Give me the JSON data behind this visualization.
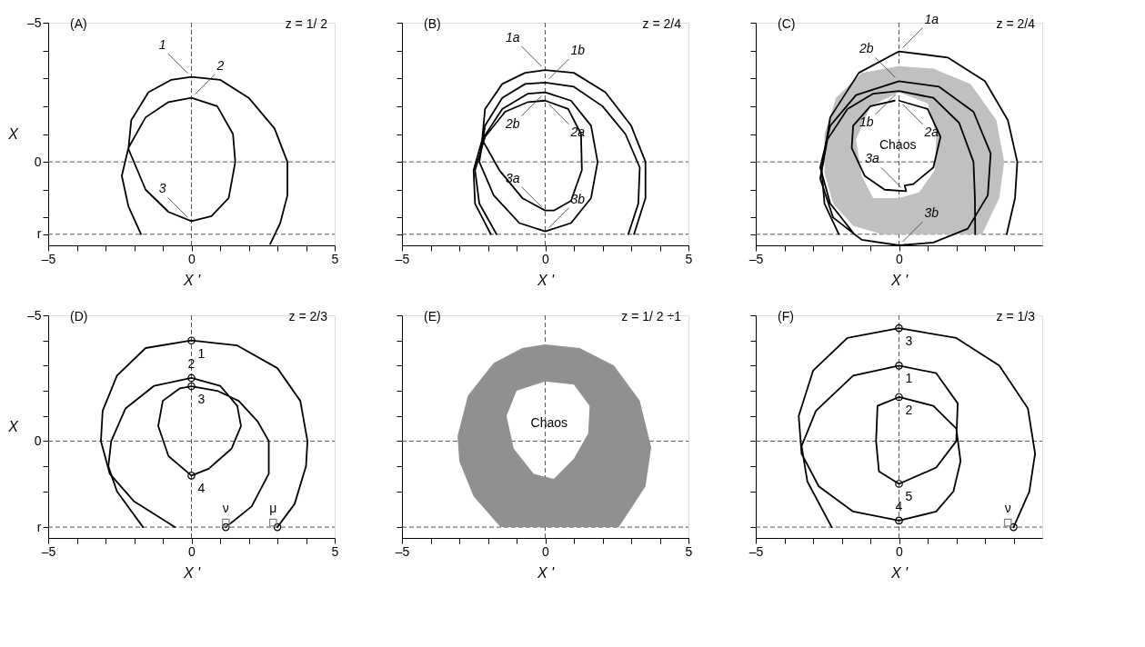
{
  "chart_data": [
    {
      "type": "line",
      "title": "(A)",
      "subtitle": "z = 1/ 2",
      "xlabel": "X '",
      "ylabel": "X",
      "xlim": [
        -5,
        5
      ],
      "ylim": [
        3,
        -5
      ],
      "xticks": [
        {
          "value": -5,
          "label": "–5"
        },
        {
          "value": -4,
          "label": null
        },
        {
          "value": -3,
          "label": null
        },
        {
          "value": -2,
          "label": null
        },
        {
          "value": -1,
          "label": null
        },
        0,
        {
          "value": 1,
          "label": null
        },
        {
          "value": 2,
          "label": null
        },
        {
          "value": 3,
          "label": null
        },
        {
          "value": 4,
          "label": null
        },
        5
      ],
      "yticks": [
        {
          "value": -5,
          "label": "–5"
        },
        {
          "value": -4,
          "label": null
        },
        {
          "value": -3,
          "label": null
        },
        {
          "value": -2,
          "label": null
        },
        {
          "value": -1,
          "label": null
        },
        0,
        {
          "value": 1,
          "label": null
        },
        {
          "value": 2,
          "label": null
        },
        {
          "value": 2.6,
          "label": "r"
        }
      ],
      "ref_lines": [
        {
          "axis": "x",
          "value": 0,
          "color": "#555555",
          "line_style": "dashed"
        },
        {
          "axis": "y",
          "value": 0,
          "color": "#555555",
          "line_style": "dashed"
        },
        {
          "axis": "y",
          "value": 2.6,
          "color": "#555555",
          "line_style": "dashed"
        }
      ],
      "grid": false,
      "line_style": "solid",
      "series": [
        {
          "color": "#000000",
          "x": [
            -1.76,
            -2.2,
            -2.43,
            -2.2,
            -1.6,
            -0.8,
            0,
            0.9,
            1.45,
            1.53,
            1.3,
            0.7,
            0,
            -0.8,
            -1.6,
            -2.2,
            -2.1,
            -1.5,
            -0.7,
            0,
            1.0,
            2.0,
            2.9,
            3.35,
            3.35,
            3.1,
            2.75
          ],
          "values": [
            2.6,
            1.6,
            0.5,
            -0.5,
            -1.6,
            -2.15,
            -2.3,
            -2.0,
            -1.0,
            0,
            1.3,
            1.95,
            2.13,
            1.8,
            1.0,
            -0.47,
            -1.5,
            -2.5,
            -2.95,
            -3.05,
            -2.95,
            -2.3,
            -1.2,
            0,
            1.2,
            2.2,
            2.95
          ]
        }
      ],
      "annotations": [
        {
          "text": "1",
          "x": 0,
          "y": -3.05
        },
        {
          "text": "2",
          "x": 0,
          "y": -2.3
        },
        {
          "text": "3",
          "x": 0,
          "y": 2.13
        }
      ]
    },
    {
      "type": "line",
      "title": "(B)",
      "subtitle": "z = 2/4",
      "xlabel": "X '",
      "xlim": [
        -5,
        5
      ],
      "ylim": [
        3,
        -5
      ],
      "tick_labels": "x",
      "xticks": [
        {
          "value": -5,
          "label": "–5"
        },
        {
          "value": -4,
          "label": null
        },
        {
          "value": -3,
          "label": null
        },
        {
          "value": -2,
          "label": null
        },
        {
          "value": -1,
          "label": null
        },
        0,
        {
          "value": 1,
          "label": null
        },
        {
          "value": 2,
          "label": null
        },
        {
          "value": 3,
          "label": null
        },
        {
          "value": 4,
          "label": null
        },
        5
      ],
      "yticks": [
        {
          "value": -5,
          "label": null
        },
        {
          "value": -4,
          "label": null
        },
        {
          "value": -3,
          "label": null
        },
        {
          "value": -2,
          "label": null
        },
        {
          "value": -1,
          "label": null
        },
        {
          "value": 0,
          "label": null
        },
        {
          "value": 1,
          "label": null
        },
        {
          "value": 2,
          "label": null
        },
        {
          "value": 2.6,
          "label": null
        }
      ],
      "ref_lines": [
        {
          "axis": "x",
          "value": 0,
          "color": "#555555",
          "line_style": "dashed"
        },
        {
          "axis": "y",
          "value": 0,
          "color": "#555555",
          "line_style": "dashed"
        },
        {
          "axis": "y",
          "value": 2.6,
          "color": "#555555",
          "line_style": "dashed"
        }
      ],
      "grid": false,
      "line_style": "solid",
      "series": [
        {
          "color": "#000000",
          "x": [
            -1.7,
            -2.3,
            -2.45,
            -2.1,
            -1.4,
            -0.6,
            0,
            0.8,
            1.25,
            1.28,
            0.9,
            0.3,
            0,
            -0.8,
            -1.6,
            -2.2,
            -2.1,
            -1.5,
            -0.7,
            0,
            1.0,
            2.1,
            3.0,
            3.5,
            3.5,
            3.1
          ],
          "values": [
            2.6,
            1.5,
            0.3,
            -0.9,
            -1.8,
            -2.15,
            -2.2,
            -1.9,
            -1.0,
            0.3,
            1.4,
            1.75,
            1.75,
            1.3,
            0.3,
            -0.8,
            -1.9,
            -2.8,
            -3.2,
            -3.3,
            -3.2,
            -2.5,
            -1.3,
            0,
            1.3,
            2.6
          ]
        },
        {
          "color": "#000000",
          "x": [
            -1.9,
            -2.45,
            -2.5,
            -2.2,
            -1.5,
            -0.6,
            0,
            0.9,
            1.6,
            1.83,
            1.6,
            0.9,
            0,
            -0.9,
            -1.8,
            -2.3,
            -2.1,
            -1.5,
            -0.7,
            0,
            1.0,
            2.0,
            2.8,
            3.3,
            3.25,
            2.9
          ],
          "values": [
            2.6,
            1.5,
            0.3,
            -0.8,
            -1.9,
            -2.45,
            -2.5,
            -2.2,
            -1.3,
            0,
            1.3,
            2.2,
            2.5,
            2.2,
            1.2,
            0,
            -1.3,
            -2.3,
            -2.8,
            -2.85,
            -2.7,
            -2.0,
            -1.0,
            0.2,
            1.5,
            2.6
          ]
        }
      ],
      "annotations": [
        {
          "text": "1a",
          "x": 0,
          "y": -3.3
        },
        {
          "text": "1b",
          "x": 0,
          "y": -2.85
        },
        {
          "text": "2b",
          "x": 0,
          "y": -2.5
        },
        {
          "text": "2a",
          "x": 0,
          "y": -2.2
        },
        {
          "text": "3a",
          "x": 0,
          "y": 1.75
        },
        {
          "text": "3b",
          "x": 0,
          "y": 2.5
        }
      ]
    },
    {
      "type": "line",
      "title": "(C)",
      "subtitle": "z = 2/4",
      "xlabel": "X '",
      "xlim": [
        -5,
        5
      ],
      "ylim": [
        3,
        -5
      ],
      "tick_labels": "x",
      "xticks": [
        {
          "value": -5,
          "label": "–5"
        },
        {
          "value": -4,
          "label": null
        },
        {
          "value": -3,
          "label": null
        },
        {
          "value": -2,
          "label": null
        },
        {
          "value": -1,
          "label": null
        },
        0,
        {
          "value": 1,
          "label": null
        },
        {
          "value": 2,
          "label": null
        },
        {
          "value": 3,
          "label": null
        },
        {
          "value": 4,
          "label": null
        }
      ],
      "yticks": [
        {
          "value": -5,
          "label": null
        },
        {
          "value": -4,
          "label": null
        },
        {
          "value": -3,
          "label": null
        },
        {
          "value": -2,
          "label": null
        },
        {
          "value": -1,
          "label": null
        },
        {
          "value": 0,
          "label": null
        },
        {
          "value": 1,
          "label": null
        },
        {
          "value": 2,
          "label": null
        },
        {
          "value": 2.6,
          "label": null
        }
      ],
      "ref_lines": [
        {
          "axis": "x",
          "value": 0,
          "color": "#555555",
          "line_style": "dashed"
        },
        {
          "axis": "y",
          "value": 0,
          "color": "#555555",
          "line_style": "dashed"
        },
        {
          "axis": "y",
          "value": 2.6,
          "color": "#555555",
          "line_style": "dashed"
        }
      ],
      "grid": false,
      "line_style": "solid",
      "series": [
        {
          "type": "area",
          "name": "Chaos",
          "color": "#c0c0c0",
          "x": [
            2.9,
            3.5,
            3.67,
            3.4,
            2.5,
            1.2,
            0,
            -1.3,
            -2.2,
            -2.6,
            -2.6,
            -2.3,
            -1.6,
            -0.6,
            2.9,
            null,
            0,
            1.0,
            1.3,
            1.25,
            0.7,
            0,
            -0.9,
            -1.3,
            -1.5,
            -1.0,
            0
          ],
          "values": [
            2.6,
            1.3,
            0,
            -1.5,
            -2.8,
            -3.35,
            -3.44,
            -3.2,
            -2.3,
            -1.0,
            0.4,
            1.5,
            2.3,
            2.6,
            2.6,
            null,
            -2.5,
            -2.1,
            -1.0,
            0.3,
            1.1,
            1.3,
            1.3,
            0.5,
            -0.8,
            -2.0,
            -2.5
          ]
        },
        {
          "color": "#000000",
          "x": [
            -2.1,
            -2.6,
            -2.7,
            -2.4,
            -1.4,
            0,
            1.7,
            3.0,
            3.8,
            4.13,
            4.05,
            3.76
          ],
          "values": [
            2.6,
            1.5,
            0.3,
            -1.6,
            -3.2,
            -3.97,
            -3.75,
            -2.9,
            -1.5,
            0,
            1.3,
            2.6
          ]
        },
        {
          "color": "#000000",
          "x": [
            -1.56,
            -2.4,
            -2.75,
            -2.4,
            -1.5,
            0,
            1.4,
            2.6,
            3.2,
            3.1,
            2.4,
            1.2,
            0,
            -1.3,
            -2.3,
            -2.75,
            -2.5,
            -1.8,
            -0.9,
            0,
            1.2,
            2.1,
            2.6,
            2.65,
            2.66
          ],
          "values": [
            2.6,
            1.5,
            0.2,
            -1.3,
            -2.4,
            -2.9,
            -2.7,
            -1.8,
            -0.3,
            1.2,
            2.4,
            2.9,
            3.0,
            2.8,
            2.0,
            0.6,
            -0.8,
            -1.9,
            -2.45,
            -2.55,
            -2.3,
            -1.4,
            0,
            1.3,
            2.6
          ]
        },
        {
          "color": "#000000",
          "x": [
            0,
            1.0,
            1.45,
            1.2,
            0.5,
            0.2,
            0.25,
            -0.5,
            -1.2,
            -1.65,
            -1.6,
            -1.0,
            -0.15
          ],
          "values": [
            -2.2,
            -1.9,
            -0.9,
            0.2,
            0.8,
            0.85,
            1.05,
            1.0,
            0.5,
            -0.5,
            -1.3,
            -2.0,
            -2.2
          ]
        }
      ],
      "annotations": [
        {
          "text": "2b",
          "x": 0,
          "y": -2.9
        },
        {
          "text": "1a",
          "x": 0,
          "y": -3.97
        },
        {
          "text": "1b",
          "x": 0,
          "y": -2.55
        },
        {
          "text": "2a",
          "x": 0,
          "y": -2.2
        },
        {
          "text": "3a",
          "x": 0.2,
          "y": 1.05
        },
        {
          "text": "3b",
          "x": 0,
          "y": 3.0
        }
      ]
    },
    {
      "type": "line",
      "title": "(D)",
      "subtitle": "z = 2/3",
      "xlabel": "X '",
      "ylabel": "X",
      "xlim": [
        -5,
        5
      ],
      "ylim": [
        3.85,
        -5
      ],
      "xticks": [
        {
          "value": -5,
          "label": "–5"
        },
        {
          "value": -4,
          "label": null
        },
        {
          "value": -3,
          "label": null
        },
        {
          "value": -2,
          "label": null
        },
        {
          "value": -1,
          "label": null
        },
        0,
        {
          "value": 1,
          "label": null
        },
        {
          "value": 2,
          "label": null
        },
        {
          "value": 3,
          "label": null
        },
        {
          "value": 4,
          "label": null
        },
        5
      ],
      "yticks": [
        {
          "value": -5,
          "label": "–5"
        },
        {
          "value": -4,
          "label": null
        },
        {
          "value": -3,
          "label": null
        },
        {
          "value": -2,
          "label": null
        },
        {
          "value": -1,
          "label": null
        },
        0,
        {
          "value": 1,
          "label": null
        },
        {
          "value": 2,
          "label": null
        },
        {
          "value": 3.42,
          "label": "r"
        }
      ],
      "ref_lines": [
        {
          "axis": "x",
          "value": 0,
          "color": "#555555",
          "line_style": "dashed"
        },
        {
          "axis": "y",
          "value": 0,
          "color": "#555555",
          "line_style": "dashed"
        },
        {
          "axis": "y",
          "value": 3.42,
          "color": "#555555",
          "line_style": "dashed"
        }
      ],
      "grid": false,
      "line_style": "solid",
      "series": [
        {
          "color": "#000000",
          "x": [
            3.0,
            3.6,
            4.0,
            4.05,
            3.8,
            3.0,
            1.6,
            0,
            -1.6,
            -2.6,
            -3.1,
            -3.16,
            -2.85,
            -2.0,
            -0.58
          ],
          "values": [
            3.42,
            2.5,
            1.0,
            0,
            -1.6,
            -2.9,
            -3.8,
            -4.0,
            -3.7,
            -2.6,
            -1.2,
            0,
            1.3,
            2.4,
            3.42
          ]
        },
        {
          "color": "#000000",
          "x": [
            -1.69,
            -2.6,
            -2.9,
            -2.8,
            -2.3,
            -1.3,
            0,
            1.0,
            1.6,
            1.73,
            1.4,
            0.6,
            0,
            -0.8,
            -1.16,
            -1.0,
            -0.4,
            0,
            0.9,
            1.65,
            2.3,
            2.7,
            2.7,
            2.1,
            1.2
          ],
          "values": [
            3.42,
            2.0,
            1.0,
            0,
            -1.3,
            -2.2,
            -2.51,
            -2.2,
            -1.4,
            -0.6,
            0.3,
            1.1,
            1.37,
            0.6,
            -0.6,
            -1.6,
            -2.1,
            -2.18,
            -2.0,
            -1.6,
            -0.8,
            0,
            1.3,
            2.6,
            3.42
          ]
        },
        {
          "type": "scatter",
          "marker": "circle",
          "color": "#000000",
          "x": [
            0,
            0,
            0,
            0,
            1.2,
            3.0
          ],
          "values": [
            -4.0,
            -2.51,
            -2.18,
            1.37,
            3.42,
            3.42
          ]
        },
        {
          "type": "scatter",
          "marker": "square",
          "color": "#808080",
          "x": [
            1.2,
            2.85
          ],
          "values": [
            3.24,
            3.24
          ]
        }
      ],
      "annotations": [
        {
          "text": "1",
          "x": 0,
          "y": -4.0
        },
        {
          "text": "2",
          "x": 0,
          "y": -2.51
        },
        {
          "text": "3",
          "x": 0,
          "y": -2.18
        },
        {
          "text": "4",
          "x": 0,
          "y": 1.37
        },
        {
          "text": "ν",
          "x": 1.2,
          "y": 3.24
        },
        {
          "text": "μ",
          "x": 2.85,
          "y": 3.24
        }
      ]
    },
    {
      "type": "line",
      "title": "(E)",
      "subtitle": "z = 1/ 2 ÷1",
      "xlabel": "X '",
      "xlim": [
        -5,
        5
      ],
      "ylim": [
        3.85,
        -5
      ],
      "tick_labels": "x",
      "xticks": [
        {
          "value": -5,
          "label": "–5"
        },
        {
          "value": -4,
          "label": null
        },
        {
          "value": -3,
          "label": null
        },
        {
          "value": -2,
          "label": null
        },
        {
          "value": -1,
          "label": null
        },
        0,
        {
          "value": 1,
          "label": null
        },
        {
          "value": 2,
          "label": null
        },
        {
          "value": 3,
          "label": null
        },
        {
          "value": 4,
          "label": null
        },
        5
      ],
      "yticks": [
        {
          "value": -5,
          "label": null
        },
        {
          "value": -4,
          "label": null
        },
        {
          "value": -3,
          "label": null
        },
        {
          "value": -2,
          "label": null
        },
        {
          "value": -1,
          "label": null
        },
        {
          "value": 0,
          "label": null
        },
        {
          "value": 1,
          "label": null
        },
        {
          "value": 2,
          "label": null
        },
        {
          "value": 3.42,
          "label": null
        }
      ],
      "ref_lines": [
        {
          "axis": "x",
          "value": 0,
          "color": "#555555",
          "line_style": "dashed"
        },
        {
          "axis": "y",
          "value": 0,
          "color": "#555555",
          "line_style": "dashed"
        },
        {
          "axis": "y",
          "value": 3.42,
          "color": "#555555",
          "line_style": "dashed"
        }
      ],
      "grid": false,
      "series": [
        {
          "type": "area",
          "name": "Chaos",
          "color": "#909090",
          "x": [
            -1.56,
            -2.5,
            -3.0,
            -3.06,
            -2.7,
            -1.8,
            -0.8,
            0,
            1.2,
            2.4,
            3.3,
            3.7,
            3.5,
            2.57,
            -1.56,
            null,
            0,
            -1.0,
            -1.35,
            -1.1,
            -0.4,
            0.3,
            1.0,
            1.5,
            1.55,
            1.0,
            0
          ],
          "values": [
            3.42,
            2.2,
            0.8,
            -0.2,
            -1.8,
            -3.1,
            -3.7,
            -3.84,
            -3.7,
            -3.0,
            -1.6,
            0.25,
            1.8,
            3.42,
            3.42,
            null,
            -2.37,
            -2.0,
            -1.0,
            0.3,
            1.3,
            1.5,
            0.7,
            -0.3,
            -1.4,
            -2.25,
            -2.37
          ]
        }
      ]
    },
    {
      "type": "line",
      "title": "(F)",
      "subtitle": "z = 1/3",
      "xlabel": "X '",
      "xlim": [
        -5,
        5
      ],
      "ylim": [
        3.85,
        -5
      ],
      "tick_labels": "x",
      "xticks": [
        {
          "value": -5,
          "label": "–5"
        },
        {
          "value": -4,
          "label": null
        },
        {
          "value": -3,
          "label": null
        },
        {
          "value": -2,
          "label": null
        },
        {
          "value": -1,
          "label": null
        },
        0,
        {
          "value": 1,
          "label": null
        },
        {
          "value": 2,
          "label": null
        },
        {
          "value": 3,
          "label": null
        },
        {
          "value": 4,
          "label": null
        }
      ],
      "yticks": [
        {
          "value": -5,
          "label": null
        },
        {
          "value": -4,
          "label": null
        },
        {
          "value": -3,
          "label": null
        },
        {
          "value": -2,
          "label": null
        },
        {
          "value": -1,
          "label": null
        },
        {
          "value": 0,
          "label": null
        },
        {
          "value": 1,
          "label": null
        },
        {
          "value": 2,
          "label": null
        },
        {
          "value": 3.42,
          "label": null
        }
      ],
      "ref_lines": [
        {
          "axis": "x",
          "value": 0,
          "color": "#555555",
          "line_style": "dashed"
        },
        {
          "axis": "y",
          "value": 0,
          "color": "#555555",
          "line_style": "dashed"
        },
        {
          "axis": "y",
          "value": 3.42,
          "color": "#555555",
          "line_style": "dashed"
        }
      ],
      "grid": false,
      "line_style": "solid",
      "series": [
        {
          "color": "#000000",
          "x": [
            4.0,
            4.55,
            4.75,
            4.5,
            3.5,
            2.0,
            0,
            -1.8,
            -3.0,
            -3.5,
            -3.4,
            -2.8,
            -1.6,
            0,
            1.3,
            1.9,
            2.15,
            2.0,
            1.2,
            0,
            -0.75,
            -0.8,
            -0.7,
            0,
            1.3,
            2.0,
            2.05,
            1.3,
            0,
            -1.6,
            -2.9,
            -3.4,
            -3.2,
            -2.35
          ],
          "values": [
            3.42,
            2.0,
            0.5,
            -1.3,
            -3.0,
            -4.1,
            -4.49,
            -4.1,
            -2.8,
            -1.0,
            0.5,
            1.8,
            2.8,
            3.16,
            2.8,
            2.0,
            0.8,
            -0.5,
            -1.4,
            -1.75,
            -1.4,
            0,
            1.2,
            1.7,
            1.05,
            0,
            -1.5,
            -2.7,
            -3.0,
            -2.6,
            -1.2,
            0.2,
            1.6,
            3.42
          ]
        },
        {
          "type": "scatter",
          "marker": "circle",
          "color": "#000000",
          "x": [
            0,
            0,
            0,
            0,
            0,
            4.0
          ],
          "values": [
            -4.49,
            -3.0,
            -1.75,
            1.7,
            3.16,
            3.42
          ]
        },
        {
          "type": "scatter",
          "marker": "square",
          "color": "#808080",
          "x": [
            3.8
          ],
          "values": [
            3.24
          ]
        }
      ],
      "annotations": [
        {
          "text": "3",
          "x": 0,
          "y": -4.49
        },
        {
          "text": "1",
          "x": 0,
          "y": -3.0
        },
        {
          "text": "2",
          "x": 0,
          "y": -1.75
        },
        {
          "text": "5",
          "x": 0,
          "y": 1.7
        },
        {
          "text": "4",
          "x": 0,
          "y": 3.16
        },
        {
          "text": "ν",
          "x": 3.8,
          "y": 3.24
        }
      ]
    }
  ]
}
